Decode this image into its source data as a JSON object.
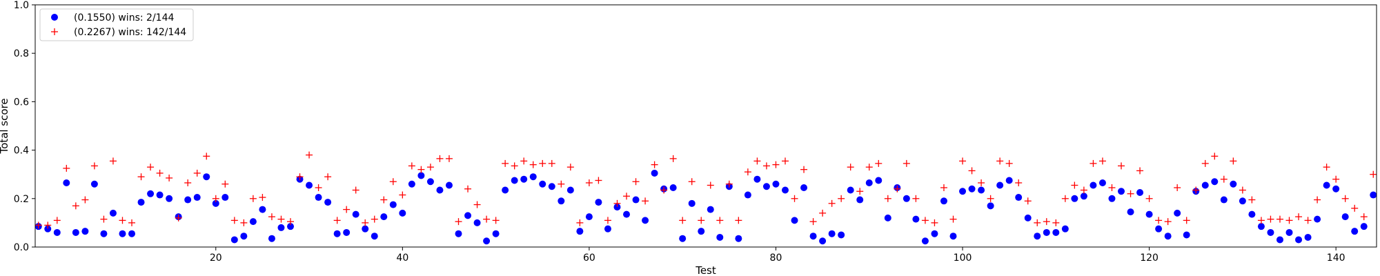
{
  "chart_data": {
    "type": "scatter",
    "title": "",
    "xlabel": "Test",
    "ylabel": "Total score",
    "xlim": [
      1,
      144
    ],
    "ylim": [
      0.0,
      1.0
    ],
    "xticks": [
      20,
      40,
      60,
      80,
      100,
      120,
      140
    ],
    "yticks": [
      0.0,
      0.2,
      0.4,
      0.6,
      0.8,
      1.0
    ],
    "xtick_labels": [
      "20",
      "40",
      "60",
      "80",
      "100",
      "120",
      "140"
    ],
    "ytick_labels": [
      "0.0",
      "0.2",
      "0.4",
      "0.6",
      "0.8",
      "1.0"
    ],
    "grid": false,
    "legend_position": "top-left",
    "series": [
      {
        "name": "(0.1550) wins: 2/144",
        "marker": "circle",
        "color": "#0000ff",
        "x": [
          1,
          2,
          3,
          4,
          5,
          6,
          7,
          8,
          9,
          10,
          11,
          12,
          13,
          14,
          15,
          16,
          17,
          18,
          19,
          20,
          21,
          22,
          23,
          24,
          25,
          26,
          27,
          28,
          29,
          30,
          31,
          32,
          33,
          34,
          35,
          36,
          37,
          38,
          39,
          40,
          41,
          42,
          43,
          44,
          45,
          46,
          47,
          48,
          49,
          50,
          51,
          52,
          53,
          54,
          55,
          56,
          57,
          58,
          59,
          60,
          61,
          62,
          63,
          64,
          65,
          66,
          67,
          68,
          69,
          70,
          71,
          72,
          73,
          74,
          75,
          76,
          77,
          78,
          79,
          80,
          81,
          82,
          83,
          84,
          85,
          86,
          87,
          88,
          89,
          90,
          91,
          92,
          93,
          94,
          95,
          96,
          97,
          98,
          99,
          100,
          101,
          102,
          103,
          104,
          105,
          106,
          107,
          108,
          109,
          110,
          111,
          112,
          113,
          114,
          115,
          116,
          117,
          118,
          119,
          120,
          121,
          122,
          123,
          124,
          125,
          126,
          127,
          128,
          129,
          130,
          131,
          132,
          133,
          134,
          135,
          136,
          137,
          138,
          139,
          140,
          141,
          142,
          143,
          144
        ],
        "y": [
          0.085,
          0.075,
          0.06,
          0.265,
          0.06,
          0.065,
          0.26,
          0.055,
          0.14,
          0.055,
          0.055,
          0.185,
          0.22,
          0.215,
          0.2,
          0.125,
          0.195,
          0.205,
          0.29,
          0.18,
          0.205,
          0.03,
          0.045,
          0.105,
          0.155,
          0.035,
          0.08,
          0.085,
          0.28,
          0.255,
          0.205,
          0.185,
          0.055,
          0.06,
          0.135,
          0.075,
          0.045,
          0.125,
          0.175,
          0.14,
          0.26,
          0.295,
          0.27,
          0.235,
          0.255,
          0.055,
          0.13,
          0.1,
          0.025,
          0.055,
          0.235,
          0.275,
          0.28,
          0.29,
          0.26,
          0.25,
          0.19,
          0.235,
          0.065,
          0.125,
          0.185,
          0.075,
          0.165,
          0.135,
          0.195,
          0.11,
          0.305,
          0.24,
          0.245,
          0.035,
          0.18,
          0.065,
          0.155,
          0.04,
          0.25,
          0.035,
          0.215,
          0.28,
          0.25,
          0.26,
          0.235,
          0.11,
          0.245,
          0.045,
          0.025,
          0.055,
          0.05,
          0.235,
          0.195,
          0.265,
          0.275,
          0.12,
          0.245,
          0.2,
          0.115,
          0.025,
          0.055,
          0.19,
          0.045,
          0.23,
          0.24,
          0.235,
          0.17,
          0.255,
          0.275,
          0.205,
          0.12,
          0.045,
          0.06,
          0.06,
          0.075,
          0.2,
          0.21,
          0.255,
          0.265,
          0.2,
          0.23,
          0.145,
          0.225,
          0.135,
          0.075,
          0.045,
          0.14,
          0.05,
          0.23,
          0.255,
          0.27,
          0.195,
          0.26,
          0.19,
          0.135,
          0.085,
          0.06,
          0.03,
          0.06,
          0.03,
          0.04,
          0.115,
          0.255,
          0.24,
          0.125,
          0.065,
          0.085,
          0.215
        ]
      },
      {
        "name": "(0.2267) wins: 142/144",
        "marker": "plus",
        "color": "#ff0000",
        "x": [
          1,
          2,
          3,
          4,
          5,
          6,
          7,
          8,
          9,
          10,
          11,
          12,
          13,
          14,
          15,
          16,
          17,
          18,
          19,
          20,
          21,
          22,
          23,
          24,
          25,
          26,
          27,
          28,
          29,
          30,
          31,
          32,
          33,
          34,
          35,
          36,
          37,
          38,
          39,
          40,
          41,
          42,
          43,
          44,
          45,
          46,
          47,
          48,
          49,
          50,
          51,
          52,
          53,
          54,
          55,
          56,
          57,
          58,
          59,
          60,
          61,
          62,
          63,
          64,
          65,
          66,
          67,
          68,
          69,
          70,
          71,
          72,
          73,
          74,
          75,
          76,
          77,
          78,
          79,
          80,
          81,
          82,
          83,
          84,
          85,
          86,
          87,
          88,
          89,
          90,
          91,
          92,
          93,
          94,
          95,
          96,
          97,
          98,
          99,
          100,
          101,
          102,
          103,
          104,
          105,
          106,
          107,
          108,
          109,
          110,
          111,
          112,
          113,
          114,
          115,
          116,
          117,
          118,
          119,
          120,
          121,
          122,
          123,
          124,
          125,
          126,
          127,
          128,
          129,
          130,
          131,
          132,
          133,
          134,
          135,
          136,
          137,
          138,
          139,
          140,
          141,
          142,
          143,
          144
        ],
        "y": [
          0.09,
          0.09,
          0.11,
          0.325,
          0.17,
          0.195,
          0.335,
          0.115,
          0.355,
          0.11,
          0.1,
          0.29,
          0.33,
          0.305,
          0.285,
          0.12,
          0.265,
          0.305,
          0.375,
          0.2,
          0.26,
          0.11,
          0.1,
          0.2,
          0.205,
          0.125,
          0.115,
          0.105,
          0.29,
          0.38,
          0.245,
          0.29,
          0.11,
          0.155,
          0.235,
          0.1,
          0.115,
          0.195,
          0.27,
          0.215,
          0.335,
          0.32,
          0.33,
          0.365,
          0.365,
          0.105,
          0.24,
          0.175,
          0.115,
          0.11,
          0.345,
          0.335,
          0.355,
          0.34,
          0.345,
          0.345,
          0.26,
          0.33,
          0.1,
          0.265,
          0.275,
          0.11,
          0.18,
          0.21,
          0.27,
          0.19,
          0.34,
          0.235,
          0.365,
          0.11,
          0.27,
          0.11,
          0.255,
          0.11,
          0.26,
          0.11,
          0.31,
          0.355,
          0.335,
          0.34,
          0.355,
          0.2,
          0.32,
          0.105,
          0.14,
          0.18,
          0.2,
          0.33,
          0.23,
          0.33,
          0.345,
          0.2,
          0.24,
          0.345,
          0.2,
          0.11,
          0.1,
          0.245,
          0.115,
          0.355,
          0.315,
          0.265,
          0.2,
          0.355,
          0.345,
          0.265,
          0.19,
          0.1,
          0.105,
          0.1,
          0.2,
          0.255,
          0.235,
          0.345,
          0.355,
          0.245,
          0.335,
          0.22,
          0.315,
          0.2,
          0.11,
          0.105,
          0.245,
          0.11,
          0.235,
          0.345,
          0.375,
          0.28,
          0.355,
          0.235,
          0.195,
          0.11,
          0.115,
          0.115,
          0.11,
          0.125,
          0.11,
          0.195,
          0.33,
          0.28,
          0.2,
          0.16,
          0.125,
          0.3
        ]
      }
    ]
  }
}
